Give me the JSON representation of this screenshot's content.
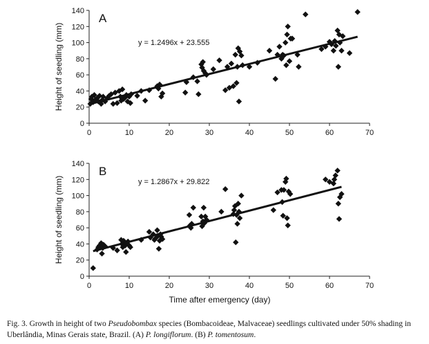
{
  "chart_data": [
    {
      "type": "scatter",
      "panel": "A",
      "title": "",
      "xlabel": "",
      "ylabel": "Height of seedling (mm)",
      "xlim": [
        0,
        70
      ],
      "ylim": [
        0,
        140
      ],
      "xticks": [
        0,
        10,
        20,
        30,
        40,
        50,
        60,
        70
      ],
      "yticks": [
        0,
        20,
        40,
        60,
        80,
        100,
        120,
        140
      ],
      "grid": false,
      "trendline": {
        "slope": 1.2496,
        "intercept": 23.555,
        "x_range": [
          0,
          67
        ],
        "equation": "y = 1.2496x + 23.555"
      },
      "points": [
        [
          0.3,
          24
        ],
        [
          0.5,
          30
        ],
        [
          0.7,
          33
        ],
        [
          1,
          26
        ],
        [
          1.3,
          35
        ],
        [
          1.5,
          29
        ],
        [
          2,
          31
        ],
        [
          2.3,
          27
        ],
        [
          2.6,
          34
        ],
        [
          3,
          24
        ],
        [
          3.3,
          29
        ],
        [
          3.5,
          33
        ],
        [
          4,
          27
        ],
        [
          4.5,
          31
        ],
        [
          5,
          34
        ],
        [
          5.5,
          36
        ],
        [
          6,
          24
        ],
        [
          6.5,
          38
        ],
        [
          7,
          25
        ],
        [
          7.5,
          40
        ],
        [
          7.8,
          33
        ],
        [
          8,
          28
        ],
        [
          8.3,
          42
        ],
        [
          8.6,
          30
        ],
        [
          9,
          32
        ],
        [
          9.3,
          35
        ],
        [
          9.6,
          27
        ],
        [
          10,
          33
        ],
        [
          10.3,
          25
        ],
        [
          10.5,
          36
        ],
        [
          12,
          34
        ],
        [
          13,
          40
        ],
        [
          14,
          28
        ],
        [
          15,
          41
        ],
        [
          17,
          46
        ],
        [
          17.3,
          43
        ],
        [
          17.6,
          48
        ],
        [
          18,
          33
        ],
        [
          18.3,
          37
        ],
        [
          24,
          38
        ],
        [
          24.3,
          51
        ],
        [
          26,
          57
        ],
        [
          27,
          52
        ],
        [
          27.3,
          36
        ],
        [
          28,
          73
        ],
        [
          28.2,
          69
        ],
        [
          28.4,
          76
        ],
        [
          28.6,
          65
        ],
        [
          29,
          62
        ],
        [
          29.3,
          60
        ],
        [
          31,
          67
        ],
        [
          32.5,
          78
        ],
        [
          34,
          41
        ],
        [
          34.5,
          70
        ],
        [
          35,
          44
        ],
        [
          35.5,
          74
        ],
        [
          36,
          46
        ],
        [
          36.5,
          85
        ],
        [
          36.8,
          50
        ],
        [
          37,
          70
        ],
        [
          37.2,
          93
        ],
        [
          37.4,
          27
        ],
        [
          37.6,
          89
        ],
        [
          38,
          84
        ],
        [
          38.3,
          72
        ],
        [
          40,
          70
        ],
        [
          42,
          75
        ],
        [
          45,
          90
        ],
        [
          46.5,
          55
        ],
        [
          47,
          85
        ],
        [
          47.5,
          95
        ],
        [
          48,
          80
        ],
        [
          48.3,
          85
        ],
        [
          48.6,
          84
        ],
        [
          49,
          100
        ],
        [
          49.2,
          72
        ],
        [
          49.4,
          110
        ],
        [
          49.6,
          120
        ],
        [
          50,
          77
        ],
        [
          50.3,
          105
        ],
        [
          50.7,
          105
        ],
        [
          52,
          85
        ],
        [
          52.3,
          70
        ],
        [
          54,
          135
        ],
        [
          58,
          92
        ],
        [
          59,
          95
        ],
        [
          60,
          101
        ],
        [
          60.5,
          98
        ],
        [
          61,
          90
        ],
        [
          61.3,
          102
        ],
        [
          61.6,
          96
        ],
        [
          62,
          115
        ],
        [
          62.2,
          70
        ],
        [
          62.4,
          110
        ],
        [
          62.6,
          100
        ],
        [
          63,
          90
        ],
        [
          63.3,
          108
        ],
        [
          65,
          87
        ],
        [
          67,
          138
        ]
      ]
    },
    {
      "type": "scatter",
      "panel": "B",
      "title": "",
      "xlabel": "Time after emergency (day)",
      "ylabel": "Height of seedling (mm)",
      "xlim": [
        0,
        70
      ],
      "ylim": [
        0,
        140
      ],
      "xticks": [
        0,
        10,
        20,
        30,
        40,
        50,
        60,
        70
      ],
      "yticks": [
        0,
        20,
        40,
        60,
        80,
        100,
        120,
        140
      ],
      "grid": false,
      "trendline": {
        "slope": 1.2867,
        "intercept": 29.822,
        "x_range": [
          1,
          63
        ],
        "equation": "y = 1.2867x + 29.822"
      },
      "points": [
        [
          1,
          10
        ],
        [
          2,
          33
        ],
        [
          2.3,
          36
        ],
        [
          2.6,
          38
        ],
        [
          3,
          41
        ],
        [
          3.2,
          28
        ],
        [
          3.4,
          35
        ],
        [
          3.6,
          39
        ],
        [
          4,
          37
        ],
        [
          6,
          35
        ],
        [
          7,
          32
        ],
        [
          8,
          45
        ],
        [
          8.2,
          40
        ],
        [
          8.4,
          36
        ],
        [
          8.6,
          44
        ],
        [
          9,
          38
        ],
        [
          9.2,
          30
        ],
        [
          9.4,
          41
        ],
        [
          9.7,
          43
        ],
        [
          10,
          38
        ],
        [
          10.3,
          36
        ],
        [
          13,
          45
        ],
        [
          15,
          55
        ],
        [
          15.3,
          48
        ],
        [
          16,
          52
        ],
        [
          16.3,
          45
        ],
        [
          16.6,
          47
        ],
        [
          17,
          57
        ],
        [
          17.2,
          50
        ],
        [
          17.4,
          34
        ],
        [
          17.6,
          44
        ],
        [
          17.8,
          52
        ],
        [
          18,
          49
        ],
        [
          18.3,
          46
        ],
        [
          25,
          76
        ],
        [
          25.2,
          63
        ],
        [
          25.4,
          60
        ],
        [
          25.6,
          65
        ],
        [
          26,
          85
        ],
        [
          28,
          74
        ],
        [
          28.2,
          62
        ],
        [
          28.4,
          68
        ],
        [
          28.6,
          85
        ],
        [
          28.8,
          66
        ],
        [
          29,
          74
        ],
        [
          29.3,
          70
        ],
        [
          33,
          80
        ],
        [
          34,
          108
        ],
        [
          36,
          77
        ],
        [
          36.2,
          82
        ],
        [
          36.4,
          87
        ],
        [
          36.6,
          42
        ],
        [
          36.8,
          76
        ],
        [
          37,
          65
        ],
        [
          37.2,
          90
        ],
        [
          37.4,
          80
        ],
        [
          37.6,
          72
        ],
        [
          38,
          100
        ],
        [
          46,
          82
        ],
        [
          47,
          104
        ],
        [
          48,
          107
        ],
        [
          48.2,
          92
        ],
        [
          48.4,
          75
        ],
        [
          48.6,
          107
        ],
        [
          49,
          117
        ],
        [
          49.2,
          121
        ],
        [
          49.4,
          72
        ],
        [
          49.6,
          63
        ],
        [
          49.8,
          105
        ],
        [
          50.2,
          102
        ],
        [
          59,
          120
        ],
        [
          60,
          117
        ],
        [
          61,
          115
        ],
        [
          61.2,
          120
        ],
        [
          61.5,
          125
        ],
        [
          62,
          131
        ],
        [
          62.2,
          90
        ],
        [
          62.4,
          71
        ],
        [
          62.6,
          98
        ],
        [
          63,
          102
        ]
      ]
    }
  ],
  "figure": {
    "caption_prefix": "Fig. 3. Growth in height of two ",
    "genus": "Pseudobombax",
    "caption_mid": " species (Bombacoideae, Malvaceae) seedlings cultivated under 50% shading in Uberlândia, Minas Gerais state, Brazil. (A) ",
    "species_a": "P. longiflorum",
    "caption_between": ". (B) ",
    "species_b": "P. tomentosum",
    "caption_end": "."
  }
}
